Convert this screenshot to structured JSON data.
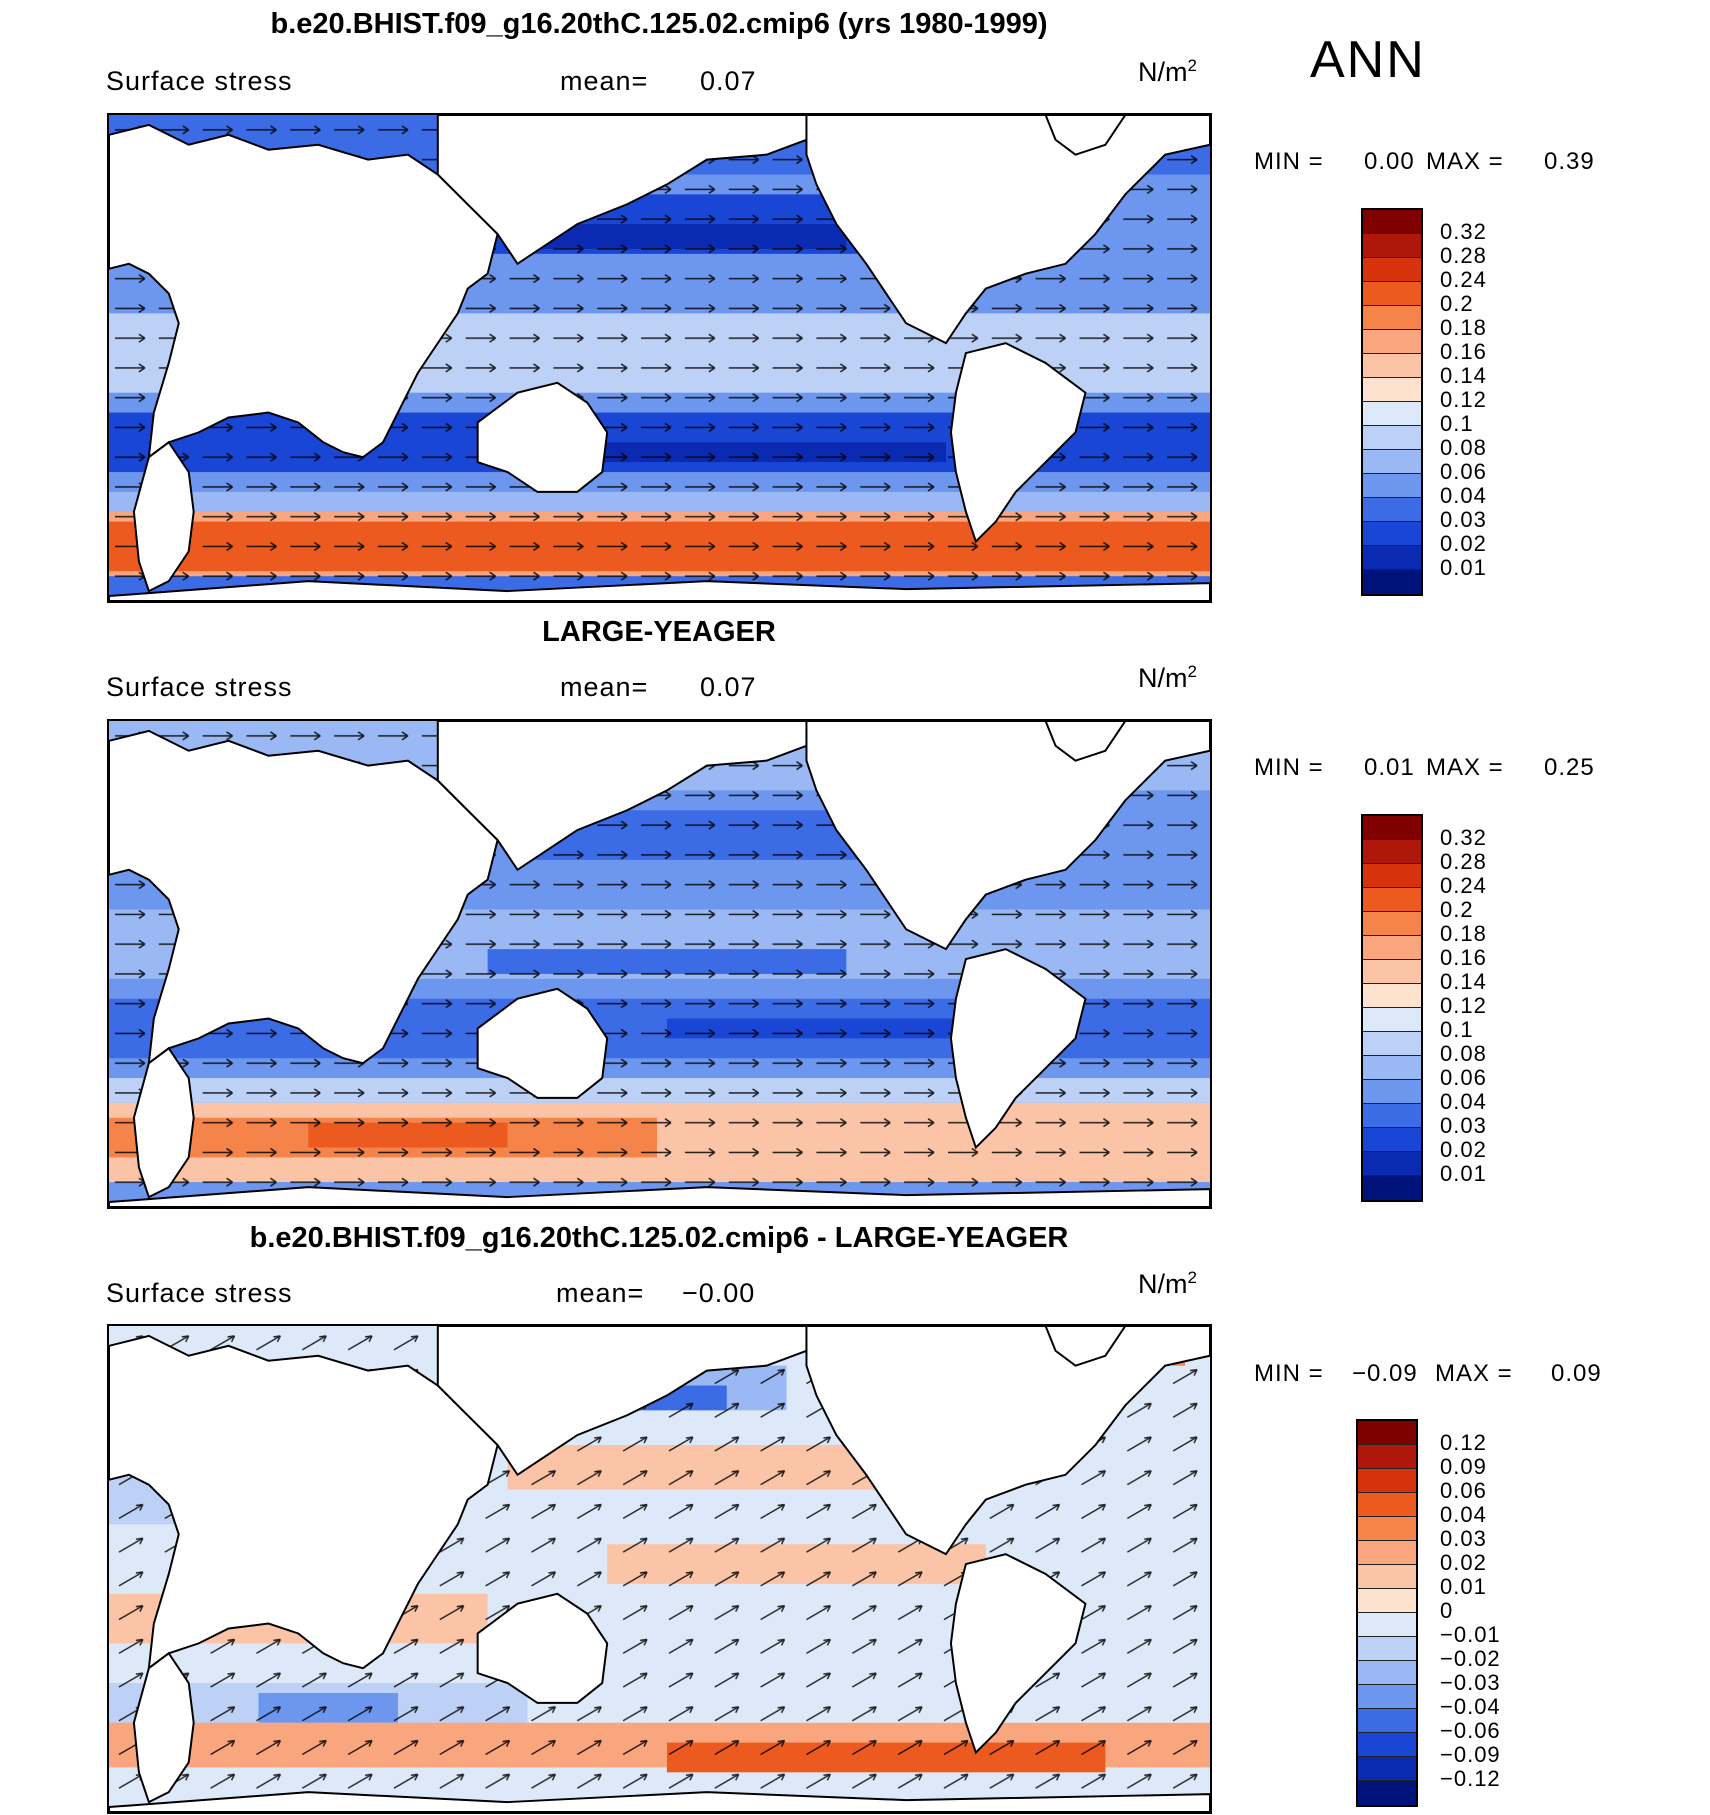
{
  "season": "ANN",
  "panels": [
    {
      "title": "b.e20.BHIST.f09_g16.20thC.125.02.cmip6 (yrs 1980-1999)",
      "variable": "Surface stress",
      "mean_label": "mean=",
      "mean_value": "0.07",
      "units_base": "N/m",
      "units_exp": "2",
      "min_label": "MIN =",
      "min_value": "0.00",
      "max_label": "MAX =",
      "max_value": "0.39",
      "colorbar": {
        "levels": [
          "0.32",
          "0.28",
          "0.24",
          "0.2",
          "0.18",
          "0.16",
          "0.14",
          "0.12",
          "0.1",
          "0.08",
          "0.06",
          "0.04",
          "0.03",
          "0.02",
          "0.01"
        ],
        "colors": [
          "#800000",
          "#b0170b",
          "#d6330d",
          "#ec5a1f",
          "#f5844b",
          "#f9a67f",
          "#fcc4a7",
          "#fce2cf",
          "#dde9f9",
          "#bdd1f7",
          "#9ab8f3",
          "#6d96ee",
          "#3c6be6",
          "#1946d4",
          "#0a2ab2",
          "#00137a"
        ]
      }
    },
    {
      "title": "LARGE-YEAGER",
      "variable": "Surface stress",
      "mean_label": "mean=",
      "mean_value": "0.07",
      "units_base": "N/m",
      "units_exp": "2",
      "min_label": "MIN =",
      "min_value": "0.01",
      "max_label": "MAX =",
      "max_value": "0.25",
      "colorbar": {
        "levels": [
          "0.32",
          "0.28",
          "0.24",
          "0.2",
          "0.18",
          "0.16",
          "0.14",
          "0.12",
          "0.1",
          "0.08",
          "0.06",
          "0.04",
          "0.03",
          "0.02",
          "0.01"
        ],
        "colors": [
          "#800000",
          "#b0170b",
          "#d6330d",
          "#ec5a1f",
          "#f5844b",
          "#f9a67f",
          "#fcc4a7",
          "#fce2cf",
          "#dde9f9",
          "#bdd1f7",
          "#9ab8f3",
          "#6d96ee",
          "#3c6be6",
          "#1946d4",
          "#0a2ab2",
          "#00137a"
        ]
      }
    },
    {
      "title": "b.e20.BHIST.f09_g16.20thC.125.02.cmip6 - LARGE-YEAGER",
      "variable": "Surface stress",
      "mean_label": "mean=",
      "mean_value": "−0.00",
      "units_base": "N/m",
      "units_exp": "2",
      "min_label": "MIN =",
      "min_value": "−0.09",
      "max_label": "MAX =",
      "max_value": "0.09",
      "colorbar": {
        "levels": [
          "0.12",
          "0.09",
          "0.06",
          "0.04",
          "0.03",
          "0.02",
          "0.01",
          "0",
          "−0.01",
          "−0.02",
          "−0.03",
          "−0.04",
          "−0.06",
          "−0.09",
          "−0.12"
        ],
        "colors": [
          "#800000",
          "#b0170b",
          "#d6330d",
          "#ec5a1f",
          "#f5844b",
          "#f9a67f",
          "#fcc4a7",
          "#fce2cf",
          "#dde9f9",
          "#bdd1f7",
          "#9ab8f3",
          "#6d96ee",
          "#3c6be6",
          "#1946d4",
          "#0a2ab2",
          "#00137a"
        ]
      }
    }
  ],
  "colors": {
    "ocean_low": "#0a2ab2",
    "ocean_mid": "#6d96ee",
    "ocean_light": "#bdd1f7",
    "westerly_high": "#ec5a1f",
    "westerly_mid": "#f9a67f",
    "land": "#ffffff",
    "coast": "#000000"
  }
}
